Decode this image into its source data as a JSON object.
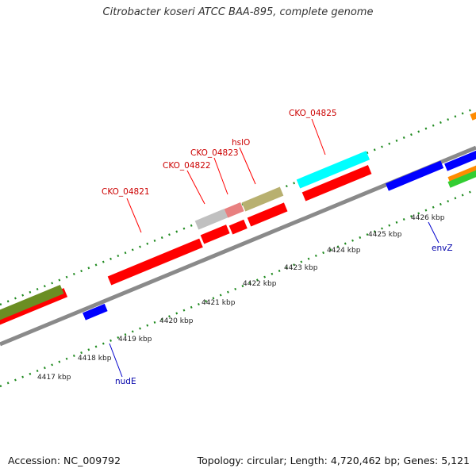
{
  "title": "Citrobacter koseri ATCC BAA-895, complete genome",
  "footer": {
    "accession": "Accession: NC_009792",
    "summary": "Topology: circular; Length: 4,720,462 bp; Genes: 5,121"
  },
  "colors": {
    "backbone": "#8a8a8a",
    "cds": "#ff0000",
    "tick": "#1f8a1f",
    "gene_label": "#cc0000",
    "gene_label_blue": "#0000aa",
    "kbp_text": "#222222"
  },
  "kbp_labels": [
    "4417 kbp",
    "4418 kbp",
    "4419 kbp",
    "4420 kbp",
    "4421 kbp",
    "4422 kbp",
    "4423 kbp",
    "4424 kbp",
    "4425 kbp",
    "4426 kbp"
  ],
  "gene_labels": [
    {
      "text": "CKO_04821"
    },
    {
      "text": "CKO_04822"
    },
    {
      "text": "CKO_04823"
    },
    {
      "text": "hslO"
    },
    {
      "text": "CKO_04825"
    },
    {
      "text": "nudE"
    },
    {
      "text": "envZ"
    }
  ],
  "features": [
    {
      "color": "#ff0000"
    },
    {
      "color": "#ff0000"
    },
    {
      "color": "#ff0000"
    },
    {
      "color": "#ff0000"
    },
    {
      "color": "#ff0000"
    },
    {
      "color": "#ff0000"
    },
    {
      "color": "#0000ff"
    },
    {
      "color": "#0000ff"
    },
    {
      "color": "#0000ff"
    },
    {
      "color": "#6b8e23"
    },
    {
      "color": "#c0c0c0"
    },
    {
      "color": "#e88080"
    },
    {
      "color": "#b8b070"
    },
    {
      "color": "#00ffff"
    },
    {
      "color": "#ff8c00"
    },
    {
      "color": "#ff8c00"
    },
    {
      "color": "#32cd32"
    }
  ]
}
